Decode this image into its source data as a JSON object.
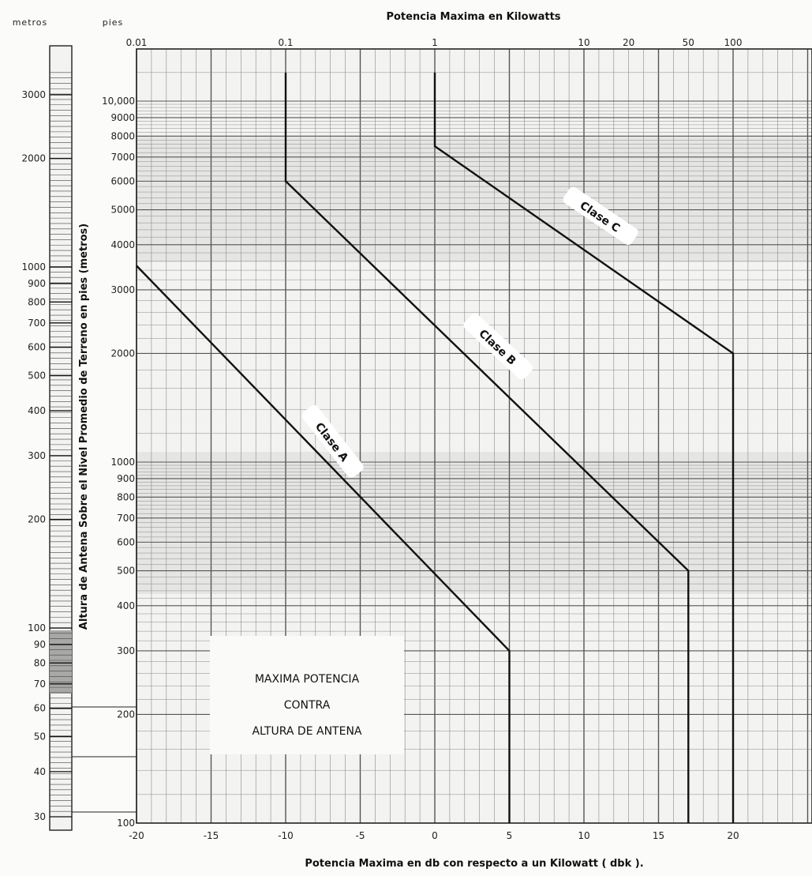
{
  "chart_data": {
    "type": "line",
    "title_top": "Potencia Maxima en Kilowatts",
    "xlabel": "Potencia Maxima en db con respecto a un Kilowatt ( dbk ).",
    "ylabel": "Altura de Antena Sobre el Nivel Promedio de Terreno en pies (metros)",
    "left_header_meters": "metros",
    "left_header_feet": "pies",
    "xlim": [
      -20,
      25
    ],
    "ylim_feet": [
      100,
      12000
    ],
    "y_scale": "log",
    "grid": true,
    "x_ticks": [
      "-20",
      "-15",
      "-10",
      "-5",
      "0",
      "5",
      "10",
      "15",
      "20"
    ],
    "x_tick_values": [
      -20,
      -15,
      -10,
      -5,
      0,
      5,
      10,
      15,
      20
    ],
    "kw_ticks": [
      {
        "label": "0.01",
        "dbk": -20
      },
      {
        "label": "0.1",
        "dbk": -10
      },
      {
        "label": "1",
        "dbk": 0
      },
      {
        "label": "10",
        "dbk": 10
      },
      {
        "label": "20",
        "dbk": 13
      },
      {
        "label": "50",
        "dbk": 17
      },
      {
        "label": "100",
        "dbk": 20
      }
    ],
    "feet_ticks": [
      {
        "label": "10,000",
        "v": 10000
      },
      {
        "label": "9000",
        "v": 9000
      },
      {
        "label": "8000",
        "v": 8000
      },
      {
        "label": "7000",
        "v": 7000
      },
      {
        "label": "6000",
        "v": 6000
      },
      {
        "label": "5000",
        "v": 5000
      },
      {
        "label": "4000",
        "v": 4000
      },
      {
        "label": "3000",
        "v": 3000
      },
      {
        "label": "2000",
        "v": 2000
      },
      {
        "label": "1000",
        "v": 1000
      },
      {
        "label": "900",
        "v": 900
      },
      {
        "label": "800",
        "v": 800
      },
      {
        "label": "700",
        "v": 700
      },
      {
        "label": "600",
        "v": 600
      },
      {
        "label": "500",
        "v": 500
      },
      {
        "label": "400",
        "v": 400
      },
      {
        "label": "300",
        "v": 300
      },
      {
        "label": "200",
        "v": 200
      },
      {
        "label": "100",
        "v": 100
      }
    ],
    "meter_ticks": [
      {
        "label": "3000",
        "v": 3000
      },
      {
        "label": "2000",
        "v": 2000
      },
      {
        "label": "1000",
        "v": 1000
      },
      {
        "label": "900",
        "v": 900
      },
      {
        "label": "800",
        "v": 800
      },
      {
        "label": "700",
        "v": 700
      },
      {
        "label": "600",
        "v": 600
      },
      {
        "label": "500",
        "v": 500
      },
      {
        "label": "400",
        "v": 400
      },
      {
        "label": "300",
        "v": 300
      },
      {
        "label": "200",
        "v": 200
      },
      {
        "label": "100",
        "v": 100
      },
      {
        "label": "90",
        "v": 90
      },
      {
        "label": "80",
        "v": 80
      },
      {
        "label": "70",
        "v": 70
      },
      {
        "label": "60",
        "v": 60
      },
      {
        "label": "50",
        "v": 50
      },
      {
        "label": "40",
        "v": 40
      },
      {
        "label": "30",
        "v": 30
      }
    ],
    "series": [
      {
        "name": "Clase A",
        "x": [
          -20,
          5,
          5
        ],
        "y": [
          3500,
          300,
          100
        ]
      },
      {
        "name": "Clase B",
        "x": [
          -10,
          -10,
          17,
          17
        ],
        "y": [
          12000,
          6000,
          500,
          100
        ]
      },
      {
        "name": "Clase C",
        "x": [
          0,
          0,
          20,
          20
        ],
        "y": [
          12000,
          7500,
          2000,
          100
        ]
      }
    ],
    "box_lines": [
      "MAXIMA POTENCIA",
      "CONTRA",
      "ALTURA DE ANTENA"
    ]
  }
}
